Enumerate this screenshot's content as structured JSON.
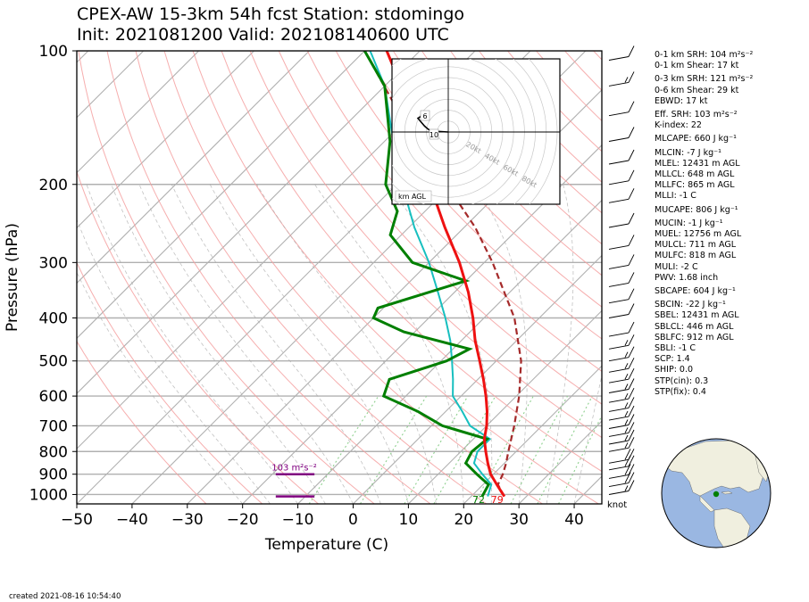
{
  "title": {
    "line1": "CPEX-AW 15-3km  54h fcst  Station: stdomingo",
    "line2": "Init: 2021081200  Valid: 202108140600 UTC"
  },
  "indices": [
    {
      "text": "0-1 km SRH: 104 m²s⁻²",
      "gap": false
    },
    {
      "text": "0-1 km Shear: 17 kt",
      "gap": false
    },
    {
      "text": "0-3 km SRH: 121 m²s⁻²",
      "gap": true
    },
    {
      "text": "0-6 km Shear: 29 kt",
      "gap": false
    },
    {
      "text": "EBWD: 17 kt",
      "gap": false
    },
    {
      "text": "Eff. SRH: 103 m²s⁻²",
      "gap": true
    },
    {
      "text": "K-index: 22",
      "gap": false
    },
    {
      "text": "MLCAPE: 660 J kg⁻¹",
      "gap": true
    },
    {
      "text": "MLCIN: -7 J kg⁻¹",
      "gap": true
    },
    {
      "text": "MLEL: 12431 m AGL",
      "gap": false
    },
    {
      "text": "MLLCL: 648 m AGL",
      "gap": false
    },
    {
      "text": "MLLFC: 865 m AGL",
      "gap": false
    },
    {
      "text": "MLLI: -1 C",
      "gap": false
    },
    {
      "text": "MUCAPE: 806 J kg⁻¹",
      "gap": true
    },
    {
      "text": "MUCIN: -1 J kg⁻¹",
      "gap": true
    },
    {
      "text": "MUEL: 12756 m AGL",
      "gap": false
    },
    {
      "text": "MULCL: 711 m AGL",
      "gap": false
    },
    {
      "text": "MULFC: 818 m AGL",
      "gap": false
    },
    {
      "text": "MULI: -2 C",
      "gap": false
    },
    {
      "text": "PWV: 1.68 inch",
      "gap": false
    },
    {
      "text": "SBCAPE: 604 J kg⁻¹",
      "gap": true
    },
    {
      "text": "SBCIN: -22 J kg⁻¹",
      "gap": true
    },
    {
      "text": "SBEL: 12431 m AGL",
      "gap": false
    },
    {
      "text": "SBLCL: 446 m AGL",
      "gap": false
    },
    {
      "text": "SBLFC: 912 m AGL",
      "gap": false
    },
    {
      "text": "SBLI: -1 C",
      "gap": false
    },
    {
      "text": "SCP: 1.4",
      "gap": false
    },
    {
      "text": "SHIP: 0.0",
      "gap": false
    },
    {
      "text": "STP(cin): 0.3",
      "gap": false
    },
    {
      "text": "STP(fix): 0.4",
      "gap": false
    }
  ],
  "created": "created 2021-08-16 10:54:40",
  "chart_data": {
    "type": "line",
    "chart_kind": "skew-T log-p sounding",
    "xlabel": "Temperature (C)",
    "ylabel": "Pressure (hPa)",
    "xlim": [
      -50,
      45
    ],
    "ylim": [
      1050,
      100
    ],
    "yscale": "log",
    "xticks": [
      -50,
      -40,
      -30,
      -20,
      -10,
      0,
      10,
      20,
      30,
      40
    ],
    "yticks": [
      100,
      200,
      300,
      400,
      500,
      600,
      700,
      800,
      900,
      1000
    ],
    "temperature_C": [
      {
        "p": 1010,
        "t": 26
      },
      {
        "p": 950,
        "t": 22.5
      },
      {
        "p": 900,
        "t": 19.5
      },
      {
        "p": 850,
        "t": 17
      },
      {
        "p": 800,
        "t": 14.5
      },
      {
        "p": 750,
        "t": 12
      },
      {
        "p": 700,
        "t": 10
      },
      {
        "p": 650,
        "t": 7.5
      },
      {
        "p": 600,
        "t": 4.5
      },
      {
        "p": 550,
        "t": 1
      },
      {
        "p": 500,
        "t": -3
      },
      {
        "p": 450,
        "t": -7.5
      },
      {
        "p": 400,
        "t": -12
      },
      {
        "p": 350,
        "t": -17.5
      },
      {
        "p": 300,
        "t": -24.5
      },
      {
        "p": 250,
        "t": -33.5
      },
      {
        "p": 200,
        "t": -44
      },
      {
        "p": 150,
        "t": -56.5
      },
      {
        "p": 120,
        "t": -67
      },
      {
        "p": 100,
        "t": -76
      }
    ],
    "dewpoint_C": [
      {
        "p": 1010,
        "t": 22
      },
      {
        "p": 950,
        "t": 21
      },
      {
        "p": 900,
        "t": 17
      },
      {
        "p": 850,
        "t": 13
      },
      {
        "p": 800,
        "t": 12
      },
      {
        "p": 750,
        "t": 12.5
      },
      {
        "p": 700,
        "t": 2
      },
      {
        "p": 650,
        "t": -5
      },
      {
        "p": 600,
        "t": -14
      },
      {
        "p": 550,
        "t": -16
      },
      {
        "p": 500,
        "t": -9
      },
      {
        "p": 470,
        "t": -7
      },
      {
        "p": 430,
        "t": -22
      },
      {
        "p": 400,
        "t": -30
      },
      {
        "p": 380,
        "t": -31
      },
      {
        "p": 330,
        "t": -20
      },
      {
        "p": 300,
        "t": -33
      },
      {
        "p": 260,
        "t": -42
      },
      {
        "p": 230,
        "t": -45
      },
      {
        "p": 200,
        "t": -52
      },
      {
        "p": 160,
        "t": -59
      },
      {
        "p": 120,
        "t": -70
      },
      {
        "p": 100,
        "t": -80
      }
    ],
    "wetbulb_C": [
      {
        "p": 1010,
        "t": 23
      },
      {
        "p": 950,
        "t": 21.5
      },
      {
        "p": 900,
        "t": 18
      },
      {
        "p": 850,
        "t": 14.5
      },
      {
        "p": 800,
        "t": 13
      },
      {
        "p": 750,
        "t": 13
      },
      {
        "p": 700,
        "t": 7
      },
      {
        "p": 650,
        "t": 3
      },
      {
        "p": 600,
        "t": -1.5
      },
      {
        "p": 550,
        "t": -4.5
      },
      {
        "p": 500,
        "t": -8
      },
      {
        "p": 450,
        "t": -12
      },
      {
        "p": 400,
        "t": -17
      },
      {
        "p": 350,
        "t": -23
      },
      {
        "p": 300,
        "t": -30
      },
      {
        "p": 250,
        "t": -39
      },
      {
        "p": 200,
        "t": -49
      },
      {
        "p": 150,
        "t": -61
      },
      {
        "p": 120,
        "t": -70
      },
      {
        "p": 100,
        "t": -79
      }
    ],
    "parcel_C": [
      {
        "p": 1010,
        "t": 26
      },
      {
        "p": 950,
        "t": 22.7
      },
      {
        "p": 900,
        "t": 21.7
      },
      {
        "p": 850,
        "t": 20.3
      },
      {
        "p": 800,
        "t": 18.6
      },
      {
        "p": 700,
        "t": 15
      },
      {
        "p": 600,
        "t": 10.5
      },
      {
        "p": 500,
        "t": 4.5
      },
      {
        "p": 400,
        "t": -4.5
      },
      {
        "p": 300,
        "t": -18.5
      },
      {
        "p": 250,
        "t": -28
      },
      {
        "p": 200,
        "t": -41
      },
      {
        "p": 150,
        "t": -58
      },
      {
        "p": 100,
        "t": -80
      }
    ],
    "surface_labels": {
      "temperature_F": "79",
      "dewpoint_F": "72"
    },
    "srh_bars": [
      {
        "label": "103 m²s⁻²",
        "p_top": 900,
        "p_bottom": 1010
      }
    ],
    "wind_unit": "knot",
    "wind_barbs": [
      {
        "p": 1000,
        "speed_kt": 15
      },
      {
        "p": 960,
        "speed_kt": 20
      },
      {
        "p": 920,
        "speed_kt": 20
      },
      {
        "p": 880,
        "speed_kt": 20
      },
      {
        "p": 850,
        "speed_kt": 20
      },
      {
        "p": 800,
        "speed_kt": 15
      },
      {
        "p": 770,
        "speed_kt": 15
      },
      {
        "p": 740,
        "speed_kt": 15
      },
      {
        "p": 710,
        "speed_kt": 15
      },
      {
        "p": 680,
        "speed_kt": 15
      },
      {
        "p": 650,
        "speed_kt": 15
      },
      {
        "p": 620,
        "speed_kt": 15
      },
      {
        "p": 590,
        "speed_kt": 15
      },
      {
        "p": 560,
        "speed_kt": 15
      },
      {
        "p": 530,
        "speed_kt": 15
      },
      {
        "p": 500,
        "speed_kt": 15
      },
      {
        "p": 470,
        "speed_kt": 15
      },
      {
        "p": 440,
        "speed_kt": 10
      },
      {
        "p": 400,
        "speed_kt": 10
      },
      {
        "p": 370,
        "speed_kt": 10
      },
      {
        "p": 340,
        "speed_kt": 10
      },
      {
        "p": 310,
        "speed_kt": 10
      },
      {
        "p": 280,
        "speed_kt": 10
      },
      {
        "p": 250,
        "speed_kt": 10
      },
      {
        "p": 220,
        "speed_kt": 10
      },
      {
        "p": 200,
        "speed_kt": 10
      },
      {
        "p": 180,
        "speed_kt": 10
      },
      {
        "p": 160,
        "speed_kt": 10
      },
      {
        "p": 140,
        "speed_kt": 10
      },
      {
        "p": 120,
        "speed_kt": 15
      },
      {
        "p": 105,
        "speed_kt": 10
      }
    ],
    "hodograph": {
      "unit_label": "km AGL",
      "ring_labels": [
        "20kt",
        "40kt",
        "60kt",
        "80kt"
      ],
      "height_labels": [
        "6",
        "10"
      ],
      "points_kt": [
        {
          "u": 0,
          "v": 0
        },
        {
          "u": -5,
          "v": 1
        },
        {
          "u": -6,
          "v": 3
        },
        {
          "u": -7,
          "v": 6
        },
        {
          "u": -8,
          "v": 10
        },
        {
          "u": -9,
          "v": 14
        },
        {
          "u": -8,
          "v": 16
        },
        {
          "u": -6,
          "v": 14
        }
      ]
    },
    "colors": {
      "temperature": "#ee1111",
      "dewpoint": "#007f00",
      "wetbulb": "#17bfbf",
      "parcel": "#a52a2a",
      "srh": "#800080",
      "isotherm": "#b0b0b0",
      "dry_adiabat": "#f4a0a0",
      "moist_adiabat": "#a8a8a8",
      "mixing_ratio": "#8fd08f"
    }
  },
  "globe": {
    "ocean_color": "#9ab7e2",
    "land_color": "#f0efdf",
    "marker_color": "#007f00"
  }
}
